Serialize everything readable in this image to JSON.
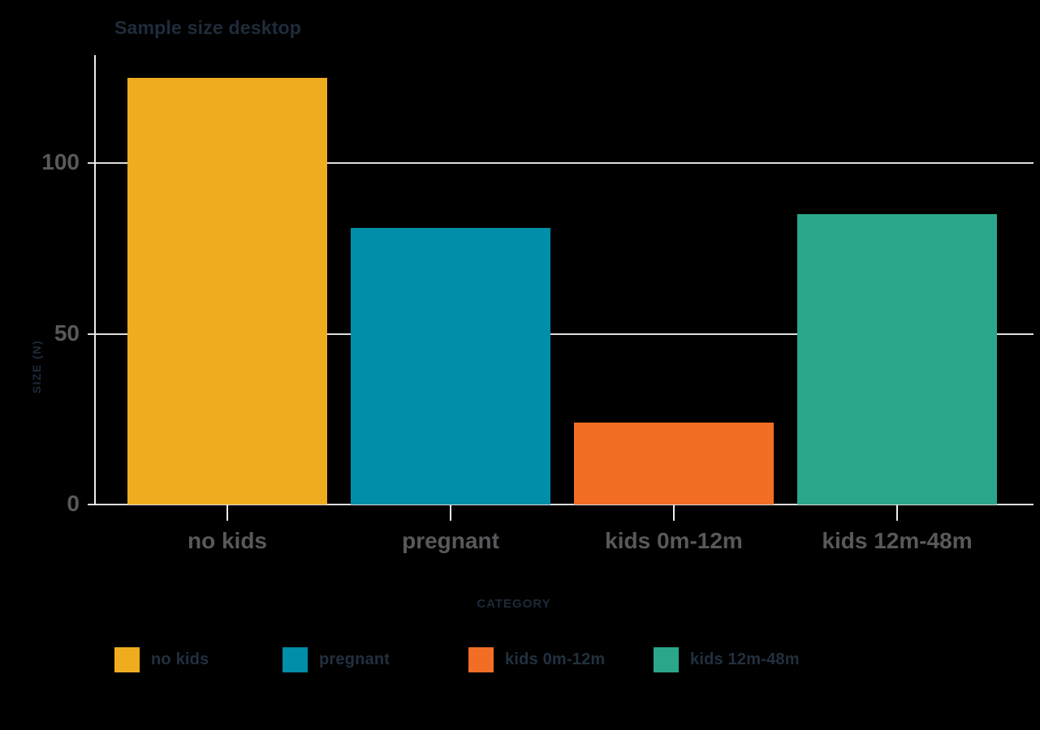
{
  "title": "Sample size desktop",
  "chart_data": {
    "type": "bar",
    "title": "Sample size desktop",
    "categories": [
      "no kids",
      "pregnant",
      "kids 0m-12m",
      "kids 12m-48m"
    ],
    "values": [
      125,
      81,
      24,
      85
    ],
    "bar_colors": [
      "#F0AC1F",
      "#008EA9",
      "#F26E24",
      "#2AA78A"
    ],
    "xlabel": "CATEGORY",
    "ylabel": "SIZE (N)",
    "yticks": [
      0,
      50,
      100
    ],
    "ylim": [
      0,
      131
    ],
    "grid": true,
    "legend_position": "bottom",
    "legend": [
      {
        "label": "no kids",
        "color": "#F0AC1F"
      },
      {
        "label": "pregnant",
        "color": "#008EA9"
      },
      {
        "label": "kids 0m-12m",
        "color": "#F26E24"
      },
      {
        "label": "kids 12m-48m",
        "color": "#2AA78A"
      }
    ]
  },
  "colors": {
    "background": "#000000",
    "grid_line": "#DEDEDE",
    "axis_line": "#ECECEC",
    "tick_label": "#58595B",
    "title_text": "#1F2C3A",
    "axis_title": "#1D2A38",
    "legend_text": "#22303E"
  }
}
